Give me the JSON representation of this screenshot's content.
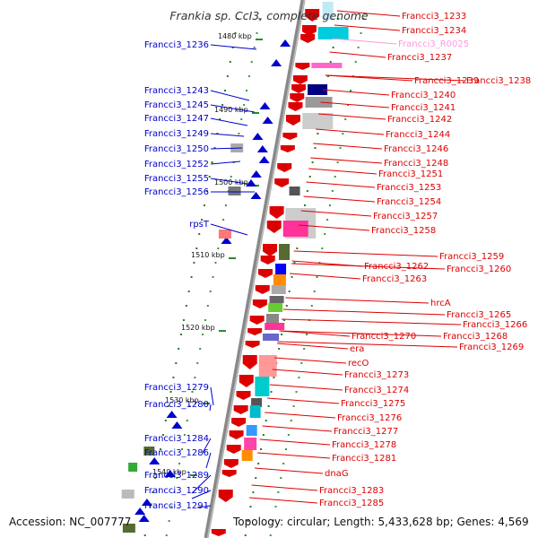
{
  "title": "Frankia sp. CcI3, complete genome",
  "footer": {
    "accession": "Accession: NC_007777",
    "summary": "Topology: circular; Length: 5,433,628 bp; Genes: 4,569"
  },
  "colors": {
    "forward": "#0000cc",
    "reverse": "#dd0000",
    "rna": "#ff99dd",
    "backbone": "#888888",
    "tick_green": "#2a8a2a"
  },
  "ticks": [
    "1480 kbp",
    "1490 kbp",
    "1500 kbp",
    "1510 kbp",
    "1520 kbp",
    "1530 kbp",
    "1540 kbp"
  ],
  "left_genes": [
    "Francci3_1236",
    "Francci3_1243",
    "Francci3_1245",
    "Francci3_1247",
    "Francci3_1249",
    "Francci3_1250",
    "Francci3_1252",
    "Francci3_1255",
    "Francci3_1256",
    "rpsT",
    "Francci3_1279",
    "Francci3_1280",
    "Francci3_1284",
    "Francci3_1286",
    "Francci3_1289",
    "Francci3_1290",
    "Francci3_1291"
  ],
  "right_genes": [
    "Francci3_1233",
    "Francci3_1234",
    "Francci3_R0025",
    "Francci3_1237",
    "Francci3_1239",
    "Francci3_1238",
    "Francci3_1240",
    "Francci3_1241",
    "Francci3_1242",
    "Francci3_1244",
    "Francci3_1246",
    "Francci3_1248",
    "Francci3_1251",
    "Francci3_1253",
    "Francci3_1254",
    "Francci3_1257",
    "Francci3_1258",
    "Francci3_1259",
    "Francci3_1262",
    "Francci3_1260",
    "Francci3_1263",
    "hrcA",
    "Francci3_1265",
    "Francci3_1266",
    "Francci3_1270",
    "Francci3_1268",
    "Francci3_1269",
    "era",
    "recO",
    "Francci3_1273",
    "Francci3_1274",
    "Francci3_1275",
    "Francci3_1276",
    "Francci3_1277",
    "Francci3_1278",
    "Francci3_1281",
    "dnaG",
    "Francci3_1283",
    "Francci3_1285"
  ]
}
